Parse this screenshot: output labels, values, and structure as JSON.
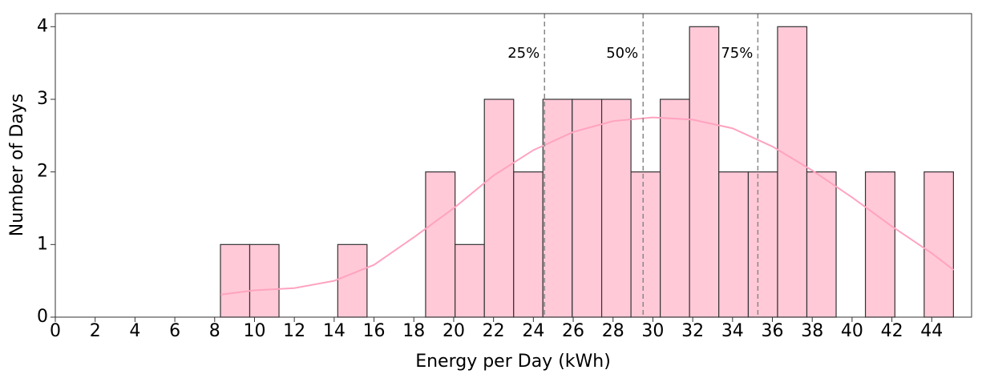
{
  "chart_data": {
    "type": "histogram",
    "xlabel": "Energy per Day (kWh)",
    "ylabel": "Number of Days",
    "bins": [
      8.29,
      9.76,
      11.23,
      12.71,
      14.18,
      15.65,
      17.12,
      18.59,
      20.07,
      21.54,
      23.01,
      24.48,
      25.95,
      27.43,
      28.9,
      30.37,
      31.84,
      33.31,
      34.79,
      36.26,
      37.73,
      39.2,
      40.67,
      42.15,
      43.62,
      45.09
    ],
    "counts": [
      1,
      1,
      0,
      0,
      1,
      0,
      0,
      2,
      1,
      3,
      2,
      3,
      3,
      3,
      2,
      3,
      4,
      2,
      2,
      4,
      2,
      0,
      2,
      0,
      2
    ],
    "color": "#ffc9d8",
    "edge_color": "#333333",
    "curve": {
      "color": "#ffa3bf",
      "x": [
        8.3,
        10,
        12,
        14,
        16,
        18,
        20,
        22,
        24,
        26,
        28,
        30,
        32,
        34,
        36,
        38,
        40,
        42,
        44,
        45.1
      ],
      "values": [
        0.31,
        0.37,
        0.4,
        0.5,
        0.72,
        1.1,
        1.5,
        1.95,
        2.3,
        2.55,
        2.7,
        2.75,
        2.72,
        2.6,
        2.35,
        2.02,
        1.65,
        1.25,
        0.88,
        0.65
      ]
    },
    "percentiles": [
      {
        "value": 24.56,
        "label": "25%"
      },
      {
        "value": 29.51,
        "label": "50%"
      },
      {
        "value": 35.27,
        "label": "75%"
      }
    ],
    "percentile_color": "#888888",
    "xlim": [
      0,
      46
    ],
    "ylim": [
      0,
      4.18
    ],
    "xticks": [
      0,
      2,
      4,
      6,
      8,
      10,
      12,
      14,
      16,
      18,
      20,
      22,
      24,
      26,
      28,
      30,
      32,
      34,
      36,
      38,
      40,
      42,
      44
    ],
    "yticks": [
      0,
      1,
      2,
      3,
      4
    ]
  }
}
